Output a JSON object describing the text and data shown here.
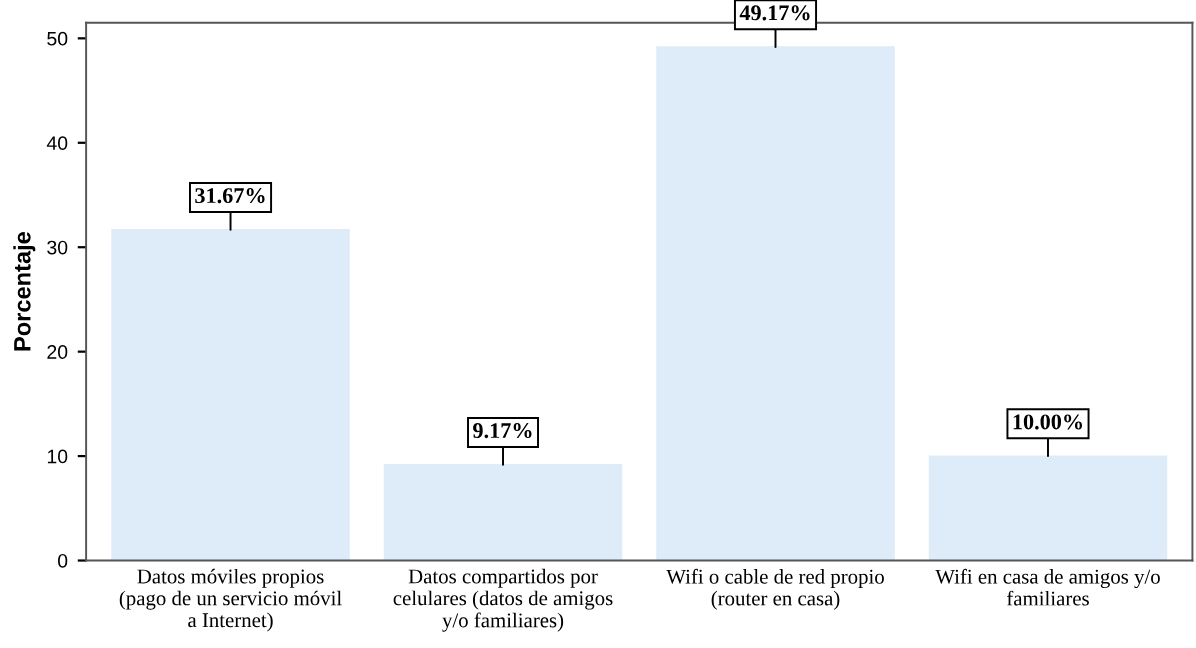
{
  "chart_data": {
    "type": "bar",
    "ylabel": "Porcentaje",
    "categories": [
      "Datos móviles propios\n(pago de un servicio móvil\na Internet)",
      "Datos compartidos por\ncelulares (datos de amigos\ny/o familiares)",
      "Wifi o cable de red propio\n(router en casa)",
      "Wifi en casa de amigos y/o\nfamiliares"
    ],
    "values": [
      31.67,
      9.17,
      49.17,
      10.0
    ],
    "value_labels": [
      "31.67%",
      "9.17%",
      "49.17%",
      "10.00%"
    ],
    "color": "#deebf9",
    "ylim": [
      0,
      51.5
    ],
    "yticks": [
      0,
      10,
      20,
      30,
      40,
      50
    ],
    "grid": false
  }
}
